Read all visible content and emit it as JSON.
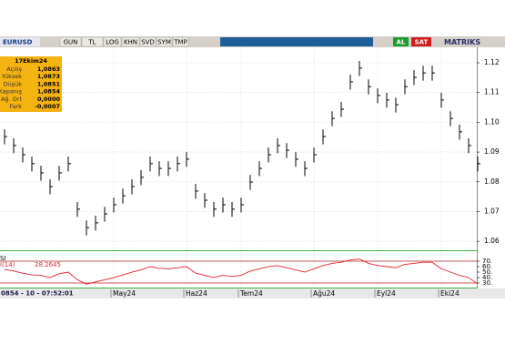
{
  "toolbar": {
    "symbol": "EURUSD",
    "buttons": [
      "GUN",
      "TL",
      "LOG",
      "KHN",
      "SVD",
      "SYM",
      "TMP"
    ],
    "buy": "AL",
    "sell": "SAT",
    "brand": "MATRIKS"
  },
  "info_box": {
    "date": "17Ekim24",
    "rows": [
      [
        "Açılış",
        "1,0863"
      ],
      [
        "Yüksek",
        "1,0873"
      ],
      [
        "Düşük",
        "1,0851"
      ],
      [
        "Kapanış",
        "1,0854"
      ],
      [
        "Ağ. Ort",
        "0,0000"
      ],
      [
        "Fark",
        "-0,0007"
      ]
    ]
  },
  "status": "0854 - 10 - 07:52:01",
  "chart_data": [
    {
      "type": "ohlc",
      "color": "#000000",
      "grid": true,
      "categories": [
        null,
        null,
        null,
        null,
        null,
        null,
        null,
        null,
        null,
        null,
        null,
        null,
        "May24",
        null,
        null,
        null,
        null,
        null,
        null,
        null,
        "Haz24",
        null,
        null,
        null,
        null,
        null,
        "Tem24",
        null,
        null,
        null,
        null,
        null,
        null,
        null,
        "Ağu24",
        null,
        null,
        null,
        null,
        null,
        null,
        "Eyl24",
        null,
        null,
        null,
        null,
        null,
        null,
        "Eki24",
        null,
        null,
        null,
        null
      ],
      "high": [
        1.0976,
        1.0946,
        1.0915,
        1.0885,
        1.0854,
        1.0808,
        1.0854,
        1.0885,
        1.0732,
        1.067,
        1.0686,
        1.0716,
        1.0747,
        1.0777,
        1.0808,
        1.0839,
        1.0885,
        1.0869,
        1.0869,
        1.0885,
        1.09,
        1.0793,
        1.0762,
        1.0732,
        1.0747,
        1.0732,
        1.0747,
        1.0823,
        1.0869,
        1.0915,
        1.0946,
        1.093,
        1.09,
        1.0869,
        1.0915,
        1.0976,
        1.1037,
        1.1068,
        1.116,
        1.1206,
        1.1144,
        1.1114,
        1.1099,
        1.1083,
        1.1144,
        1.1175,
        1.119,
        1.119,
        1.1099,
        1.1037,
        1.0992,
        1.0946,
        1.0885
      ],
      "low": [
        1.0926,
        1.0896,
        1.0865,
        1.0835,
        1.0804,
        1.0758,
        1.0804,
        1.0835,
        1.0682,
        1.062,
        1.0636,
        1.0666,
        1.0697,
        1.0727,
        1.0758,
        1.0789,
        1.0835,
        1.0819,
        1.0819,
        1.0835,
        1.085,
        1.0743,
        1.0712,
        1.0682,
        1.0697,
        1.0682,
        1.0697,
        1.0773,
        1.0819,
        1.0865,
        1.0896,
        1.088,
        1.085,
        1.0819,
        1.0865,
        1.0926,
        1.0987,
        1.1018,
        1.111,
        1.1156,
        1.1094,
        1.1064,
        1.1049,
        1.1033,
        1.1094,
        1.1125,
        1.114,
        1.114,
        1.1049,
        1.0987,
        1.0942,
        1.0896,
        1.0835
      ],
      "close": [
        1.0952,
        1.0922,
        1.0891,
        1.0861,
        1.083,
        1.0784,
        1.083,
        1.0861,
        1.0708,
        1.0646,
        1.0662,
        1.0692,
        1.0723,
        1.0753,
        1.0784,
        1.0815,
        1.0861,
        1.0845,
        1.0845,
        1.0861,
        1.0876,
        1.0769,
        1.0738,
        1.0708,
        1.0723,
        1.0708,
        1.0723,
        1.0799,
        1.0845,
        1.0891,
        1.0922,
        1.0906,
        1.0876,
        1.0845,
        1.0891,
        1.0952,
        1.1013,
        1.1044,
        1.1136,
        1.1182,
        1.112,
        1.109,
        1.1075,
        1.1059,
        1.112,
        1.1151,
        1.1166,
        1.1166,
        1.1075,
        1.1013,
        1.0968,
        1.0922,
        1.0861
      ],
      "ylim": [
        1.0576,
        1.1252
      ],
      "yticks": [
        1.06,
        1.07,
        1.08,
        1.09,
        {
          "value": 1.1,
          "label": "1.10"
        },
        1.11,
        1.12
      ]
    },
    {
      "type": "line",
      "title": "SI",
      "series": [
        {
          "name": "I(14)",
          "color": "#e8202a",
          "values": [
            55,
            52,
            48,
            45,
            44,
            40,
            47,
            50,
            36,
            28,
            32,
            36,
            40,
            45,
            50,
            54,
            60,
            57,
            56,
            58,
            60,
            48,
            44,
            40,
            44,
            42,
            44,
            52,
            56,
            60,
            62,
            58,
            54,
            50,
            56,
            62,
            66,
            68,
            72,
            74,
            66,
            62,
            60,
            58,
            64,
            66,
            68,
            68,
            56,
            50,
            44,
            40,
            28.2645
          ]
        }
      ],
      "levels": [
        70,
        30
      ],
      "level_color": "#b22222",
      "ylim": [
        21.7,
        85
      ],
      "yticks": [
        {
          "value": 70,
          "label": "70."
        },
        {
          "value": 60,
          "label": "60."
        },
        {
          "value": 50,
          "label": "50."
        },
        {
          "value": 40,
          "label": "40."
        },
        {
          "value": 30,
          "label": "30."
        }
      ]
    }
  ]
}
